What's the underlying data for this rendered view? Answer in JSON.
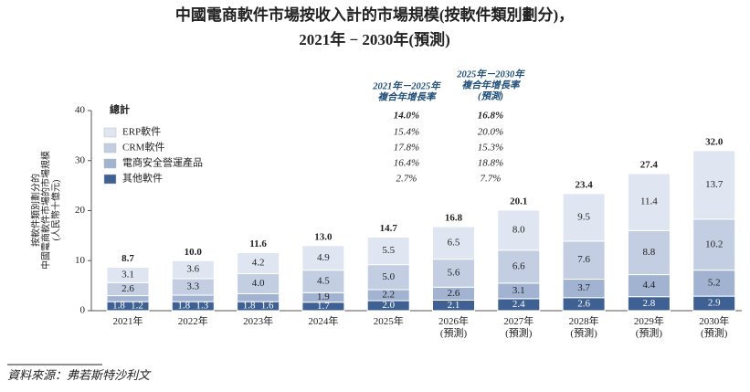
{
  "chart_data": {
    "type": "stacked_bar",
    "title": [
      "中國電商軟件市場按收入計的市場規模(按軟件類別劃分)，",
      "2021年 − 2030年(預測)"
    ],
    "y_label": [
      "按軟件類別劃分的",
      "中國電商軟件市場的市場規模",
      "(人民幣十億元)"
    ],
    "categories": [
      "2021年",
      "2022年",
      "2023年",
      "2024年",
      "2025年",
      "2026年\n(預測)",
      "2027年\n(預測)",
      "2028年\n(預測)",
      "2029年\n(預測)",
      "2030年\n(預測)"
    ],
    "series": [
      {
        "name": "其他軟件",
        "color": "#3f6092",
        "text_color": "#ffffff",
        "values": [
          1.8,
          1.8,
          1.8,
          1.7,
          2.0,
          2.1,
          2.4,
          2.6,
          2.8,
          2.9
        ],
        "value_labels": [
          "1.8",
          "1.8",
          "1.8",
          "1.7",
          "2.0",
          "2.1",
          "2.4",
          "2.6",
          "2.8",
          "2.9"
        ],
        "cagr": [
          "2.7%",
          "7.7%"
        ]
      },
      {
        "name": "電商安全營運產品",
        "color": "#a2b3d1",
        "text_color": "#222222",
        "values": [
          1.2,
          1.3,
          1.6,
          1.9,
          2.2,
          2.6,
          3.1,
          3.7,
          4.4,
          5.2
        ],
        "value_labels": [
          "1.2",
          "1.3",
          "1.6",
          "1.9",
          "2.2",
          "2.6",
          "3.1",
          "3.7",
          "4.4",
          "5.2"
        ],
        "cagr": [
          "16.4%",
          "18.8%"
        ]
      },
      {
        "name": "CRM軟件",
        "color": "#c3cee3",
        "text_color": "#222222",
        "values": [
          2.6,
          3.3,
          4.0,
          4.5,
          5.0,
          5.6,
          6.6,
          7.6,
          8.8,
          10.2
        ],
        "value_labels": [
          "2.6",
          "3.3",
          "4.0",
          "4.5",
          "5.0",
          "5.6",
          "6.6",
          "7.6",
          "8.8",
          "10.2"
        ],
        "cagr": [
          "17.8%",
          "15.3%"
        ]
      },
      {
        "name": "ERP軟件",
        "color": "#e0e6f1",
        "text_color": "#222222",
        "values": [
          3.1,
          3.6,
          4.2,
          4.9,
          5.5,
          6.5,
          8.0,
          9.5,
          11.4,
          13.7
        ],
        "value_labels": [
          "3.1",
          "3.6",
          "4.2",
          "4.9",
          "5.5",
          "6.5",
          "8.0",
          "9.5",
          "11.4",
          "13.7"
        ],
        "cagr": [
          "15.4%",
          "20.0%"
        ]
      }
    ],
    "totals": [
      8.7,
      10.0,
      11.6,
      13.0,
      14.7,
      16.8,
      20.1,
      23.4,
      27.4,
      32.0
    ],
    "total_labels": [
      "8.7",
      "10.0",
      "11.6",
      "13.0",
      "14.7",
      "16.8",
      "20.1",
      "23.4",
      "27.4",
      "32.0"
    ],
    "legend_title": "總計",
    "cagr_headers": [
      [
        "2021年－2025年",
        "複合年增長率"
      ],
      [
        "2025年－2030年",
        "複合年增長率",
        "(預測)"
      ]
    ],
    "cagr_total": [
      "14.0%",
      "16.8%"
    ],
    "ylim": [
      0,
      40
    ],
    "yticks": [
      0,
      10,
      20,
      30,
      40
    ],
    "grid": false,
    "source": "資料來源：弗若斯特沙利文"
  }
}
